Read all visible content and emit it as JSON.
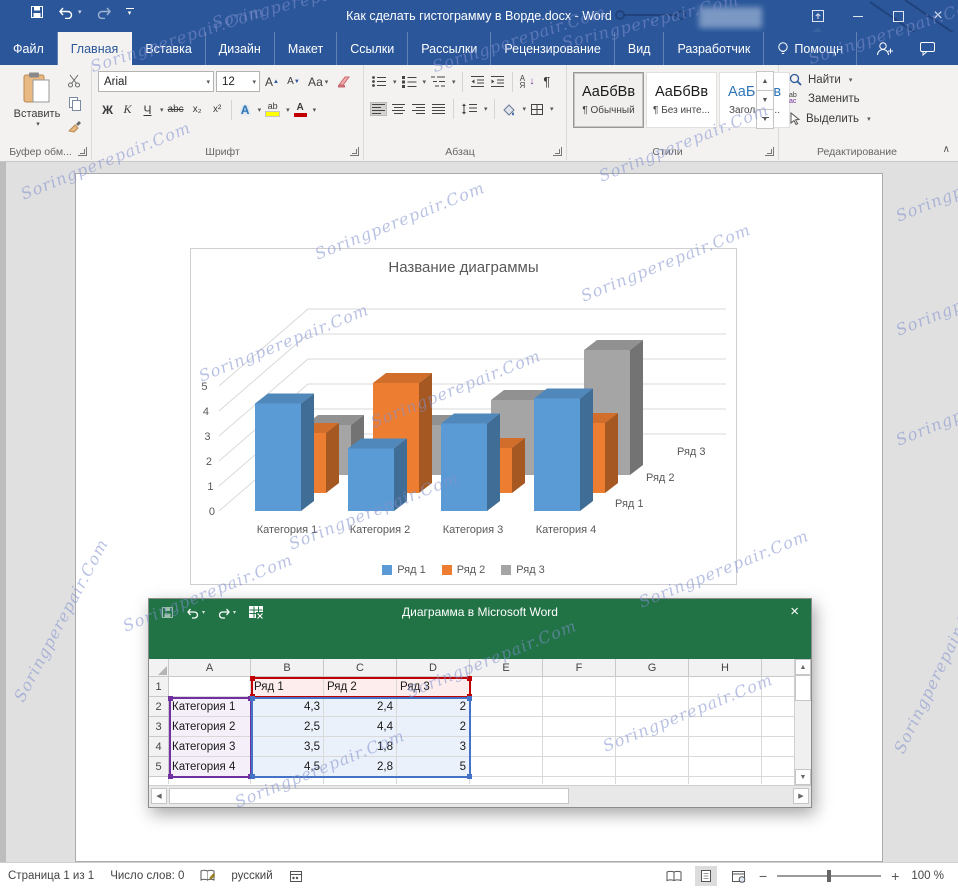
{
  "window": {
    "title": "Как сделать гистограмму в Ворде.docx - Word",
    "icons": {
      "close": "×",
      "minimize": "–",
      "maximize": "□",
      "qat": [
        "save",
        "undo",
        "redo",
        "customize-quick-access"
      ]
    }
  },
  "tabs": {
    "items": [
      {
        "label": "Файл",
        "active": false
      },
      {
        "label": "Главная",
        "active": true
      },
      {
        "label": "Вставка",
        "active": false
      },
      {
        "label": "Дизайн",
        "active": false
      },
      {
        "label": "Макет",
        "active": false
      },
      {
        "label": "Ссылки",
        "active": false
      },
      {
        "label": "Рассылки",
        "active": false
      },
      {
        "label": "Рецензирование",
        "active": false
      },
      {
        "label": "Вид",
        "active": false
      },
      {
        "label": "Разработчик",
        "active": false
      }
    ],
    "help": "Помощн"
  },
  "ribbon": {
    "clipboard": {
      "paste": "Вставить",
      "label": "Буфер обм..."
    },
    "font": {
      "name": "Arial",
      "size": "12",
      "grow": "А",
      "shrink": "А",
      "case": "Аа",
      "bold": "Ж",
      "italic": "К",
      "underline": "Ч",
      "strike": "abc",
      "subscript": "x₂",
      "superscript": "x²",
      "effects": "А",
      "highlight": "ab",
      "color": "А",
      "label": "Шрифт"
    },
    "paragraph": {
      "label": "Абзац"
    },
    "styles": {
      "label": "Стили",
      "items": [
        {
          "preview": "АаБбВв",
          "name": "¶ Обычный",
          "selected": true,
          "accent": false
        },
        {
          "preview": "АаБбВв",
          "name": "¶ Без инте...",
          "selected": false,
          "accent": false
        },
        {
          "preview": "АаБбВв",
          "name": "Заголово...",
          "selected": false,
          "accent": true
        }
      ]
    },
    "editing": {
      "label": "Редактирование",
      "find": "Найти",
      "replace": "Заменить",
      "select": "Выделить"
    }
  },
  "chart_data": {
    "type": "bar",
    "variant": "3d-column",
    "title": "Название диаграммы",
    "categories": [
      "Категория 1",
      "Категория 2",
      "Категория 3",
      "Категория 4"
    ],
    "series": [
      {
        "name": "Ряд 1",
        "color": "#5B9BD5",
        "values": [
          4.3,
          2.5,
          3.5,
          4.5
        ]
      },
      {
        "name": "Ряд 2",
        "color": "#ED7D31",
        "values": [
          2.4,
          4.4,
          1.8,
          2.8
        ]
      },
      {
        "name": "Ряд 3",
        "color": "#A5A5A5",
        "values": [
          2,
          2,
          3,
          5
        ]
      }
    ],
    "ylim": [
      0,
      5
    ],
    "yticks": [
      0,
      1,
      2,
      3,
      4,
      5
    ],
    "legend_position": "bottom",
    "grid": true
  },
  "excel": {
    "window_title": "Диаграмма в Microsoft Word",
    "columns": [
      "A",
      "B",
      "C",
      "D",
      "E",
      "F",
      "G",
      "H"
    ],
    "rows": [
      {
        "n": "1",
        "cells": [
          "",
          "Ряд 1",
          "Ряд 2",
          "Ряд 3",
          "",
          "",
          "",
          ""
        ]
      },
      {
        "n": "2",
        "cells": [
          "Категория 1",
          "4,3",
          "2,4",
          "2",
          "",
          "",
          "",
          ""
        ]
      },
      {
        "n": "3",
        "cells": [
          "Категория 2",
          "2,5",
          "4,4",
          "2",
          "",
          "",
          "",
          ""
        ]
      },
      {
        "n": "4",
        "cells": [
          "Категория 3",
          "3,5",
          "1,8",
          "3",
          "",
          "",
          "",
          ""
        ]
      },
      {
        "n": "5",
        "cells": [
          "Категория 4",
          "4,5",
          "2,8",
          "5",
          "",
          "",
          "",
          ""
        ]
      }
    ],
    "selection": {
      "series_color": "#C00000",
      "category_color": "#7030A0",
      "values_color": "#4472C4"
    }
  },
  "watermark": {
    "text": "Soringperepair.Com"
  },
  "status_bar": {
    "page": "Страница 1 из 1",
    "words": "Число слов: 0",
    "language": "русский",
    "zoom_level": "100 %"
  },
  "colors": {
    "word_blue": "#2B579A",
    "excel_green": "#217346",
    "series1": "#5B9BD5",
    "series2": "#ED7D31",
    "series3": "#A5A5A5"
  }
}
